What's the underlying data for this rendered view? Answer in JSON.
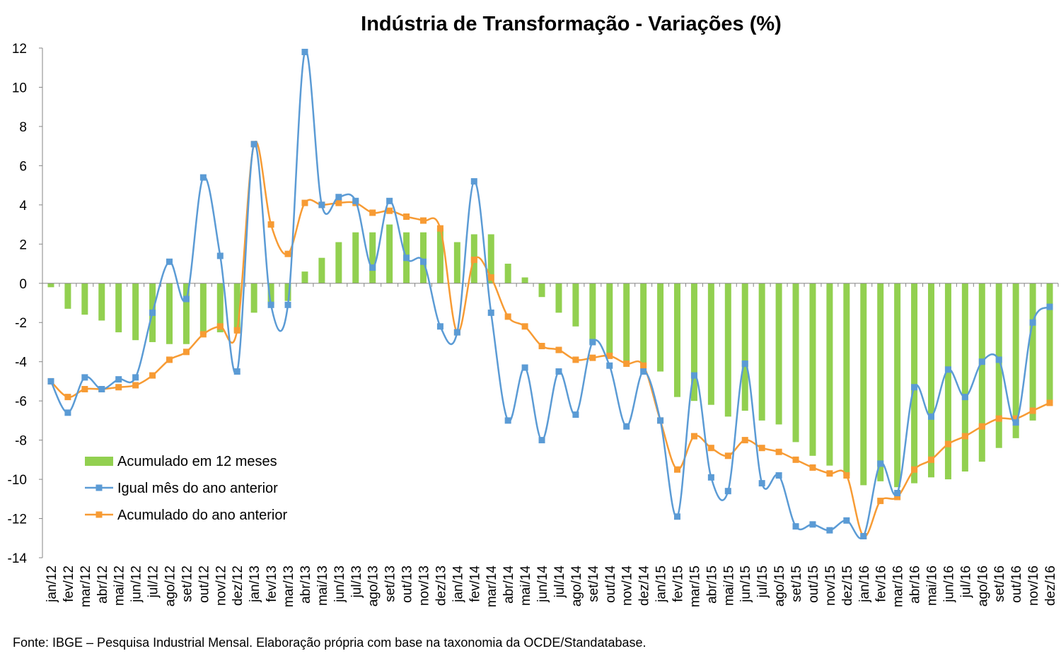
{
  "chart_data": {
    "type": "bar",
    "title": "Indústria de Transformação - Variações (%)",
    "xlabel": "",
    "ylabel": "",
    "ylim": [
      -14,
      12
    ],
    "yticks": [
      12,
      10,
      8,
      6,
      4,
      2,
      0,
      -2,
      -4,
      -6,
      -8,
      -10,
      -12,
      -14
    ],
    "grid": false,
    "legend_position": "bottom-left",
    "categories": [
      "jan/12",
      "fev/12",
      "mar/12",
      "abr/12",
      "mai/12",
      "jun/12",
      "jul/12",
      "ago/12",
      "set/12",
      "out/12",
      "nov/12",
      "dez/12",
      "jan/13",
      "fev/13",
      "mar/13",
      "abr/13",
      "mai/13",
      "jun/13",
      "jul/13",
      "ago/13",
      "set/13",
      "out/13",
      "nov/13",
      "dez/13",
      "jan/14",
      "fev/14",
      "mar/14",
      "abr/14",
      "mai/14",
      "jun/14",
      "jul/14",
      "ago/14",
      "set/14",
      "out/14",
      "nov/14",
      "dez/14",
      "jan/15",
      "fev/15",
      "mar/15",
      "abr/15",
      "mai/15",
      "jun/15",
      "jul/15",
      "ago/15",
      "set/15",
      "out/15",
      "nov/15",
      "dez/15",
      "jan/16",
      "fev/16",
      "mar/16",
      "abr/16",
      "mai/16",
      "jun/16",
      "jul/16",
      "ago/16",
      "set/16",
      "out/16",
      "nov/16",
      "dez/16"
    ],
    "series": [
      {
        "name": "Acumulado em 12 meses",
        "kind": "bar",
        "color": "#92D050",
        "values": [
          -0.2,
          -1.3,
          -1.6,
          -1.9,
          -2.5,
          -2.9,
          -3.0,
          -3.1,
          -3.1,
          -2.6,
          -2.5,
          -2.5,
          -1.5,
          -1.1,
          -0.9,
          0.6,
          1.3,
          2.1,
          2.6,
          2.6,
          3.0,
          2.6,
          2.6,
          2.8,
          2.1,
          2.5,
          2.5,
          1.0,
          0.3,
          -0.7,
          -1.5,
          -2.2,
          -3.1,
          -3.6,
          -4.0,
          -4.3,
          -4.5,
          -5.8,
          -6.0,
          -6.2,
          -6.8,
          -6.5,
          -7.0,
          -7.2,
          -8.1,
          -8.8,
          -9.3,
          -9.8,
          -10.3,
          -10.1,
          -10.4,
          -10.2,
          -9.9,
          -10.0,
          -9.6,
          -9.1,
          -8.4,
          -7.9,
          -7.0,
          -6.1
        ]
      },
      {
        "name": "Igual mês do ano anterior",
        "kind": "line",
        "color": "#5B9BD5",
        "values": [
          -5.0,
          -6.6,
          -4.8,
          -5.4,
          -4.9,
          -4.8,
          -1.5,
          1.1,
          -0.8,
          5.4,
          1.4,
          -4.5,
          7.1,
          -1.1,
          -1.1,
          11.8,
          4.0,
          4.4,
          4.2,
          0.8,
          4.2,
          1.3,
          1.1,
          -2.2,
          -2.5,
          5.2,
          -1.5,
          -7.0,
          -4.3,
          -8.0,
          -4.5,
          -6.7,
          -3.0,
          -4.2,
          -7.3,
          -4.5,
          -7.0,
          -11.9,
          -4.7,
          -9.9,
          -10.6,
          -4.1,
          -10.2,
          -9.8,
          -12.4,
          -12.3,
          -12.6,
          -12.1,
          -12.9,
          -9.2,
          -10.7,
          -5.3,
          -6.8,
          -4.4,
          -5.8,
          -4.0,
          -3.9,
          -7.1,
          -2.0,
          -1.2
        ]
      },
      {
        "name": "Acumulado do ano anterior",
        "kind": "line",
        "color": "#F79B34",
        "values": [
          -5.0,
          -5.8,
          -5.4,
          -5.4,
          -5.3,
          -5.2,
          -4.7,
          -3.9,
          -3.5,
          -2.6,
          -2.2,
          -2.4,
          7.1,
          3.0,
          1.5,
          4.1,
          4.0,
          4.1,
          4.1,
          3.6,
          3.7,
          3.4,
          3.2,
          2.8,
          -2.5,
          1.2,
          0.3,
          -1.7,
          -2.2,
          -3.2,
          -3.4,
          -3.9,
          -3.8,
          -3.7,
          -4.1,
          -4.2,
          -7.0,
          -9.5,
          -7.8,
          -8.4,
          -8.8,
          -8.0,
          -8.4,
          -8.6,
          -9.0,
          -9.4,
          -9.7,
          -9.8,
          -12.9,
          -11.1,
          -10.9,
          -9.5,
          -9.0,
          -8.2,
          -7.8,
          -7.3,
          -6.9,
          -6.9,
          -6.5,
          -6.1
        ]
      }
    ]
  },
  "source": "Fonte: IBGE – Pesquisa Industrial Mensal. Elaboração própria com base na taxonomia da OCDE/Standatabase."
}
